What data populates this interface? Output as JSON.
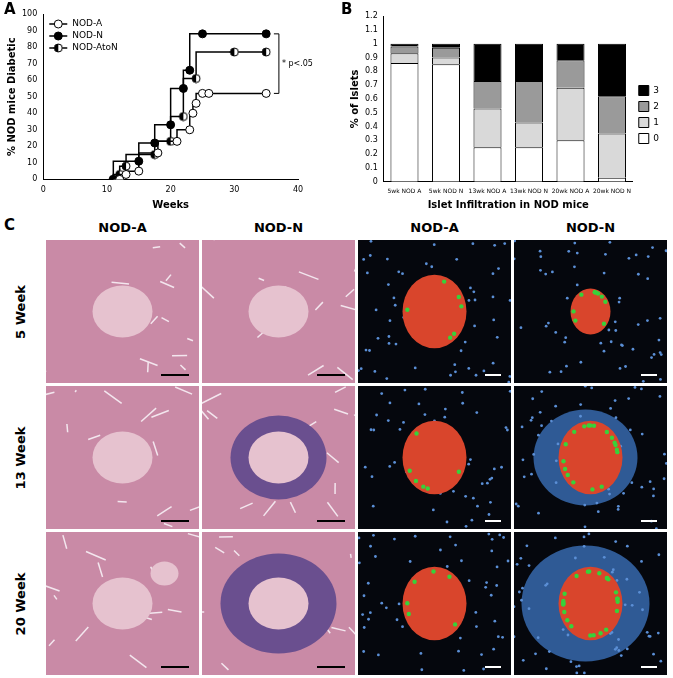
{
  "chart_data": [
    {
      "type": "line",
      "title": "A",
      "x_label": "Weeks",
      "y_label": "% NOD mice Diabetic",
      "xlim": [
        0,
        40
      ],
      "xticks": [
        0,
        10,
        20,
        30,
        40
      ],
      "ylim": [
        0,
        100
      ],
      "yticks": [
        0,
        10,
        20,
        30,
        40,
        50,
        60,
        70,
        80,
        90,
        100
      ],
      "grid": false,
      "legend": "top-left",
      "line_style": "step",
      "series": [
        {
          "name": "NOD-A",
          "color": "#000000",
          "marker": "circle_open",
          "x": [
            12,
            13,
            15,
            18,
            21,
            23,
            23.5,
            24,
            25,
            26,
            35
          ],
          "values": [
            0,
            3,
            5,
            16,
            23,
            30,
            40,
            46,
            52,
            52,
            52
          ]
        },
        {
          "name": "NOD-N",
          "color": "#000000",
          "marker": "circle_filled",
          "x": [
            11,
            15,
            17.5,
            20,
            22,
            23,
            25,
            35
          ],
          "values": [
            0,
            11,
            22,
            33,
            55,
            66,
            88,
            88
          ]
        },
        {
          "name": "NOD-AtoN",
          "color": "#000000",
          "marker": "circle_half",
          "x": [
            11,
            12,
            13,
            17.5,
            20,
            22,
            24,
            30,
            35
          ],
          "values": [
            0,
            3,
            8,
            15,
            23,
            38,
            61,
            77,
            77
          ]
        }
      ],
      "annotations": [
        {
          "text": "* p<.05",
          "x": 37,
          "y_from": 52,
          "y_to": 88
        }
      ]
    },
    {
      "type": "bar",
      "title": "B",
      "x_label": "Islet Infiltration in NOD mice",
      "y_label": "% of Islets",
      "categories": [
        "5wk NOD A",
        "5wk NOD N",
        "13wk NOD A",
        "13wk NOD N",
        "20wk NOD A",
        "20wk NOD N"
      ],
      "ylim": [
        0,
        1.2
      ],
      "yticks": [
        0,
        0.1,
        0.2,
        0.3,
        0.4,
        0.5,
        0.6,
        0.7,
        0.8,
        0.9,
        1,
        1.1,
        1.2
      ],
      "stacked": true,
      "grid": false,
      "legend": "right",
      "series": [
        {
          "name": "0",
          "color": "#ffffff",
          "values": [
            0.86,
            0.85,
            0.25,
            0.25,
            0.3,
            0.03
          ]
        },
        {
          "name": "1",
          "color": "#d9d9d9",
          "values": [
            0.07,
            0.05,
            0.28,
            0.18,
            0.38,
            0.32
          ]
        },
        {
          "name": "2",
          "color": "#9a9a9a",
          "values": [
            0.05,
            0.07,
            0.2,
            0.3,
            0.2,
            0.27
          ]
        },
        {
          "name": "3",
          "color": "#000000",
          "values": [
            0.02,
            0.03,
            0.27,
            0.27,
            0.12,
            0.38
          ]
        }
      ]
    }
  ],
  "panel_c": {
    "title": "C",
    "columns": [
      "NOD-A",
      "NOD-N",
      "NOD-A",
      "NOD-N"
    ],
    "rows": [
      "5 Week",
      "13 Week",
      "20 Week"
    ]
  }
}
